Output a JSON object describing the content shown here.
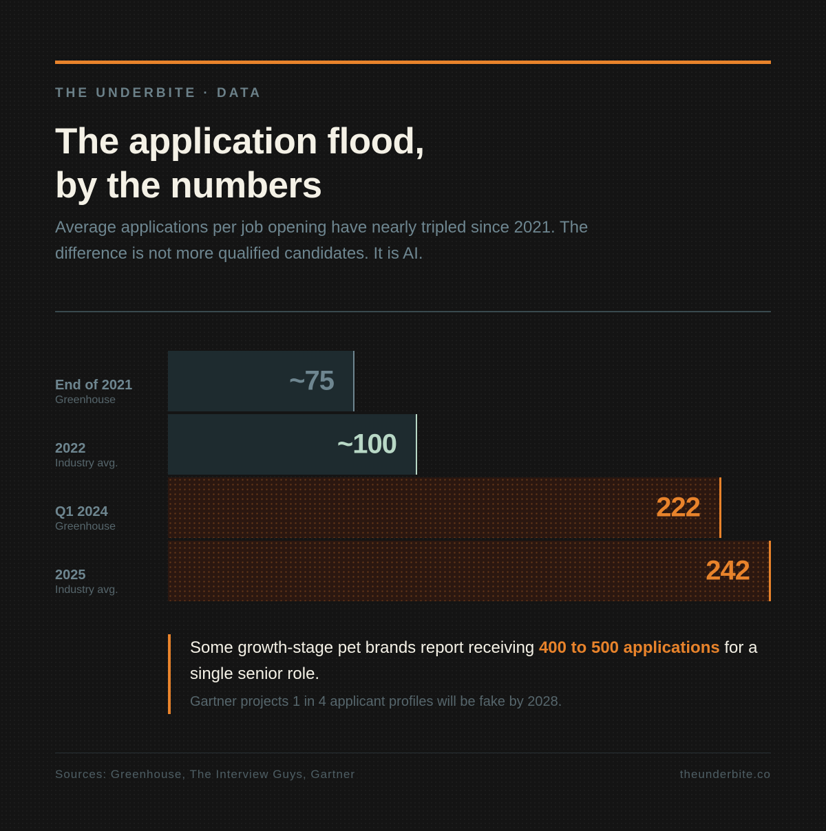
{
  "header": {
    "kicker": "THE UNDERBITE · DATA",
    "title_line1": "The application flood,",
    "title_line2": "by the numbers",
    "subtitle": "Average applications per job opening have nearly tripled since 2021. The difference is not more qualified candidates. It is AI."
  },
  "chart_data": {
    "type": "bar",
    "orientation": "horizontal",
    "categories": [
      "End of 2021",
      "2022",
      "Q1 2024",
      "2025"
    ],
    "category_sources": [
      "Greenhouse",
      "Industry avg.",
      "Greenhouse",
      "Industry avg."
    ],
    "values": [
      75,
      100,
      222,
      242
    ],
    "value_labels": [
      "~75",
      "~100",
      "222",
      "242"
    ],
    "bar_styles": [
      "muted",
      "muted-highlight",
      "hot",
      "hot"
    ],
    "xlim": [
      0,
      242
    ],
    "grid": false,
    "colors": {
      "muted_fill": "#1e2b2f",
      "muted_text": "#6e8690",
      "muted_highlight_text": "#b8d8c6",
      "hot_accent": "#e8832b"
    }
  },
  "callout": {
    "text_before": "Some growth-stage pet brands report receiving ",
    "text_highlight": "400 to 500 applications",
    "text_after": " for a single senior role.",
    "note": "Gartner projects 1 in 4 applicant profiles will be fake by 2028."
  },
  "footer": {
    "sources": "Sources: Greenhouse, The Interview Guys, Gartner",
    "site": "theunderbite.co"
  },
  "colors": {
    "background": "#141414",
    "accent": "#e8832b",
    "headline": "#f4f1e6",
    "muted": "#6e8690"
  }
}
